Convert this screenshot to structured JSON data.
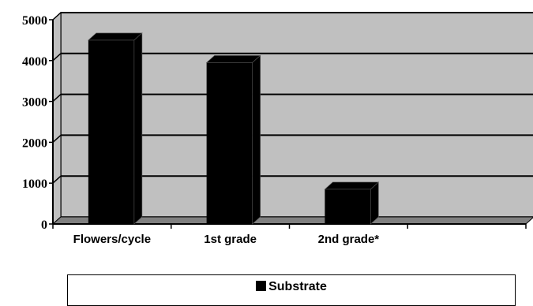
{
  "chart_data": {
    "type": "bar",
    "categories": [
      "Flowers/cycle",
      "1st grade",
      "2nd grade*",
      ""
    ],
    "series": [
      {
        "name": "Substrate",
        "values": [
          4500,
          3950,
          850,
          null
        ]
      }
    ],
    "yticks": [
      "0",
      "1000",
      "2000",
      "3000",
      "4000",
      "5000"
    ],
    "ylim": [
      0,
      5000
    ],
    "grid": true,
    "legend_position": "bottom",
    "colors": {
      "bar": "#000000",
      "plot_wall": "#c0c0c0",
      "floor": "#808080",
      "grid": "#000000"
    }
  },
  "legend": {
    "label": "Substrate"
  }
}
